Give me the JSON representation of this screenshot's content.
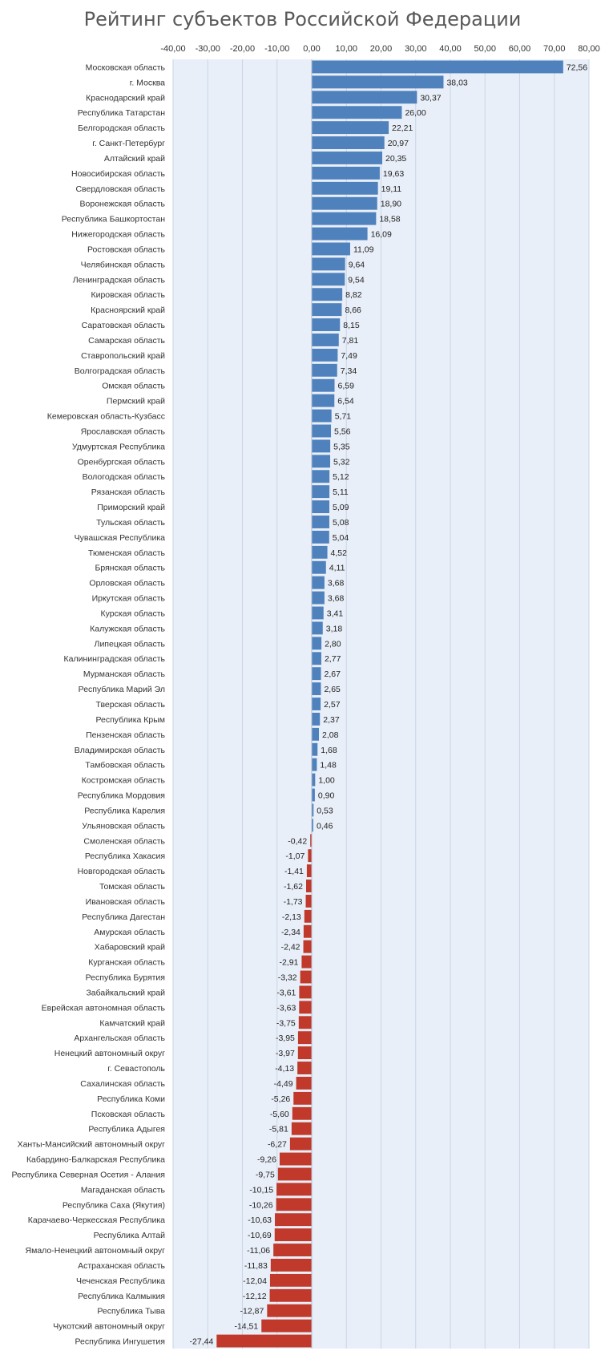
{
  "chart_data": {
    "type": "bar",
    "orientation": "horizontal",
    "title": "Рейтинг субъектов Российской Федерации",
    "xlim": [
      -40,
      80
    ],
    "x_ticks": [
      "-40,00",
      "-30,00",
      "-20,00",
      "-10,00",
      "0,00",
      "10,00",
      "20,00",
      "30,00",
      "40,00",
      "50,00",
      "60,00",
      "70,00",
      "80,00"
    ],
    "grid": true,
    "colors": {
      "positive": "#4f81bd",
      "negative": "#c0392b",
      "plot_background": "#e9eff8",
      "grid": "#c9d5e6"
    },
    "categories": [
      "Московская область",
      "г. Москва",
      "Краснодарский край",
      "Республика Татарстан",
      "Белгородская область",
      "г. Санкт-Петербург",
      "Алтайский край",
      "Новосибирская область",
      "Свердловская область",
      "Воронежская область",
      "Республика Башкортостан",
      "Нижегородская область",
      "Ростовская область",
      "Челябинская область",
      "Ленинградская область",
      "Кировская область",
      "Красноярский край",
      "Саратовская область",
      "Самарская область",
      "Ставропольский край",
      "Волгоградская область",
      "Омская область",
      "Пермский край",
      "Кемеровская область-Кузбасс",
      "Ярославская область",
      "Удмуртская Республика",
      "Оренбургская область",
      "Вологодская область",
      "Рязанская область",
      "Приморский край",
      "Тульская область",
      "Чувашская Республика",
      "Тюменская область",
      "Брянская область",
      "Орловская область",
      "Иркутская область",
      "Курская область",
      "Калужская область",
      "Липецкая область",
      "Калининградская область",
      "Мурманская область",
      "Республика Марий Эл",
      "Тверская область",
      "Республика Крым",
      "Пензенская область",
      "Владимирская область",
      "Тамбовская область",
      "Костромская область",
      "Республика Мордовия",
      "Республика Карелия",
      "Ульяновская область",
      "Смоленская область",
      "Республика Хакасия",
      "Новгородская область",
      "Томская область",
      "Ивановская область",
      "Республика Дагестан",
      "Амурская область",
      "Хабаровский край",
      "Курганская область",
      "Республика Бурятия",
      "Забайкальский край",
      "Еврейская автономная область",
      "Камчатский край",
      "Архангельская область",
      "Ненецкий автономный округ",
      "г. Севастополь",
      "Сахалинская область",
      "Республика Коми",
      "Псковская область",
      "Республика Адыгея",
      "Ханты-Мансийский автономный округ",
      "Кабардино-Балкарская Республика",
      "Республика Северная Осетия - Алания",
      "Магаданская область",
      "Республика Саха (Якутия)",
      "Карачаево-Черкесская Республика",
      "Республика Алтай",
      "Ямало-Ненецкий автономный округ",
      "Астраханская область",
      "Чеченская Республика",
      "Республика Калмыкия",
      "Республика Тыва",
      "Чукотский автономный округ",
      "Республика Ингушетия"
    ],
    "values": [
      72.56,
      38.03,
      30.37,
      26.0,
      22.21,
      20.97,
      20.35,
      19.63,
      19.11,
      18.9,
      18.58,
      16.09,
      11.09,
      9.64,
      9.54,
      8.82,
      8.66,
      8.15,
      7.81,
      7.49,
      7.34,
      6.59,
      6.54,
      5.71,
      5.56,
      5.35,
      5.32,
      5.12,
      5.11,
      5.09,
      5.08,
      5.04,
      4.52,
      4.11,
      3.68,
      3.68,
      3.41,
      3.18,
      2.8,
      2.77,
      2.67,
      2.65,
      2.57,
      2.37,
      2.08,
      1.68,
      1.48,
      1.0,
      0.9,
      0.53,
      0.46,
      -0.42,
      -1.07,
      -1.41,
      -1.62,
      -1.73,
      -2.13,
      -2.34,
      -2.42,
      -2.91,
      -3.32,
      -3.61,
      -3.63,
      -3.75,
      -3.95,
      -3.97,
      -4.13,
      -4.49,
      -5.26,
      -5.6,
      -5.81,
      -6.27,
      -9.26,
      -9.75,
      -10.15,
      -10.26,
      -10.63,
      -10.69,
      -11.06,
      -11.83,
      -12.04,
      -12.12,
      -12.87,
      -14.51,
      -27.44
    ],
    "value_labels": [
      "72,56",
      "38,03",
      "30,37",
      "26,00",
      "22,21",
      "20,97",
      "20,35",
      "19,63",
      "19,11",
      "18,90",
      "18,58",
      "16,09",
      "11,09",
      "9,64",
      "9,54",
      "8,82",
      "8,66",
      "8,15",
      "7,81",
      "7,49",
      "7,34",
      "6,59",
      "6,54",
      "5,71",
      "5,56",
      "5,35",
      "5,32",
      "5,12",
      "5,11",
      "5,09",
      "5,08",
      "5,04",
      "4,52",
      "4,11",
      "3,68",
      "3,68",
      "3,41",
      "3,18",
      "2,80",
      "2,77",
      "2,67",
      "2,65",
      "2,57",
      "2,37",
      "2,08",
      "1,68",
      "1,48",
      "1,00",
      "0,90",
      "0,53",
      "0,46",
      "-0,42",
      "-1,07",
      "-1,41",
      "-1,62",
      "-1,73",
      "-2,13",
      "-2,34",
      "-2,42",
      "-2,91",
      "-3,32",
      "-3,61",
      "-3,63",
      "-3,75",
      "-3,95",
      "-3,97",
      "-4,13",
      "-4,49",
      "-5,26",
      "-5,60",
      "-5,81",
      "-6,27",
      "-9,26",
      "-9,75",
      "-10,15",
      "-10,26",
      "-10,63",
      "-10,69",
      "-11,06",
      "-11,83",
      "-12,04",
      "-12,12",
      "-12,87",
      "-14,51",
      "-27,44"
    ]
  }
}
